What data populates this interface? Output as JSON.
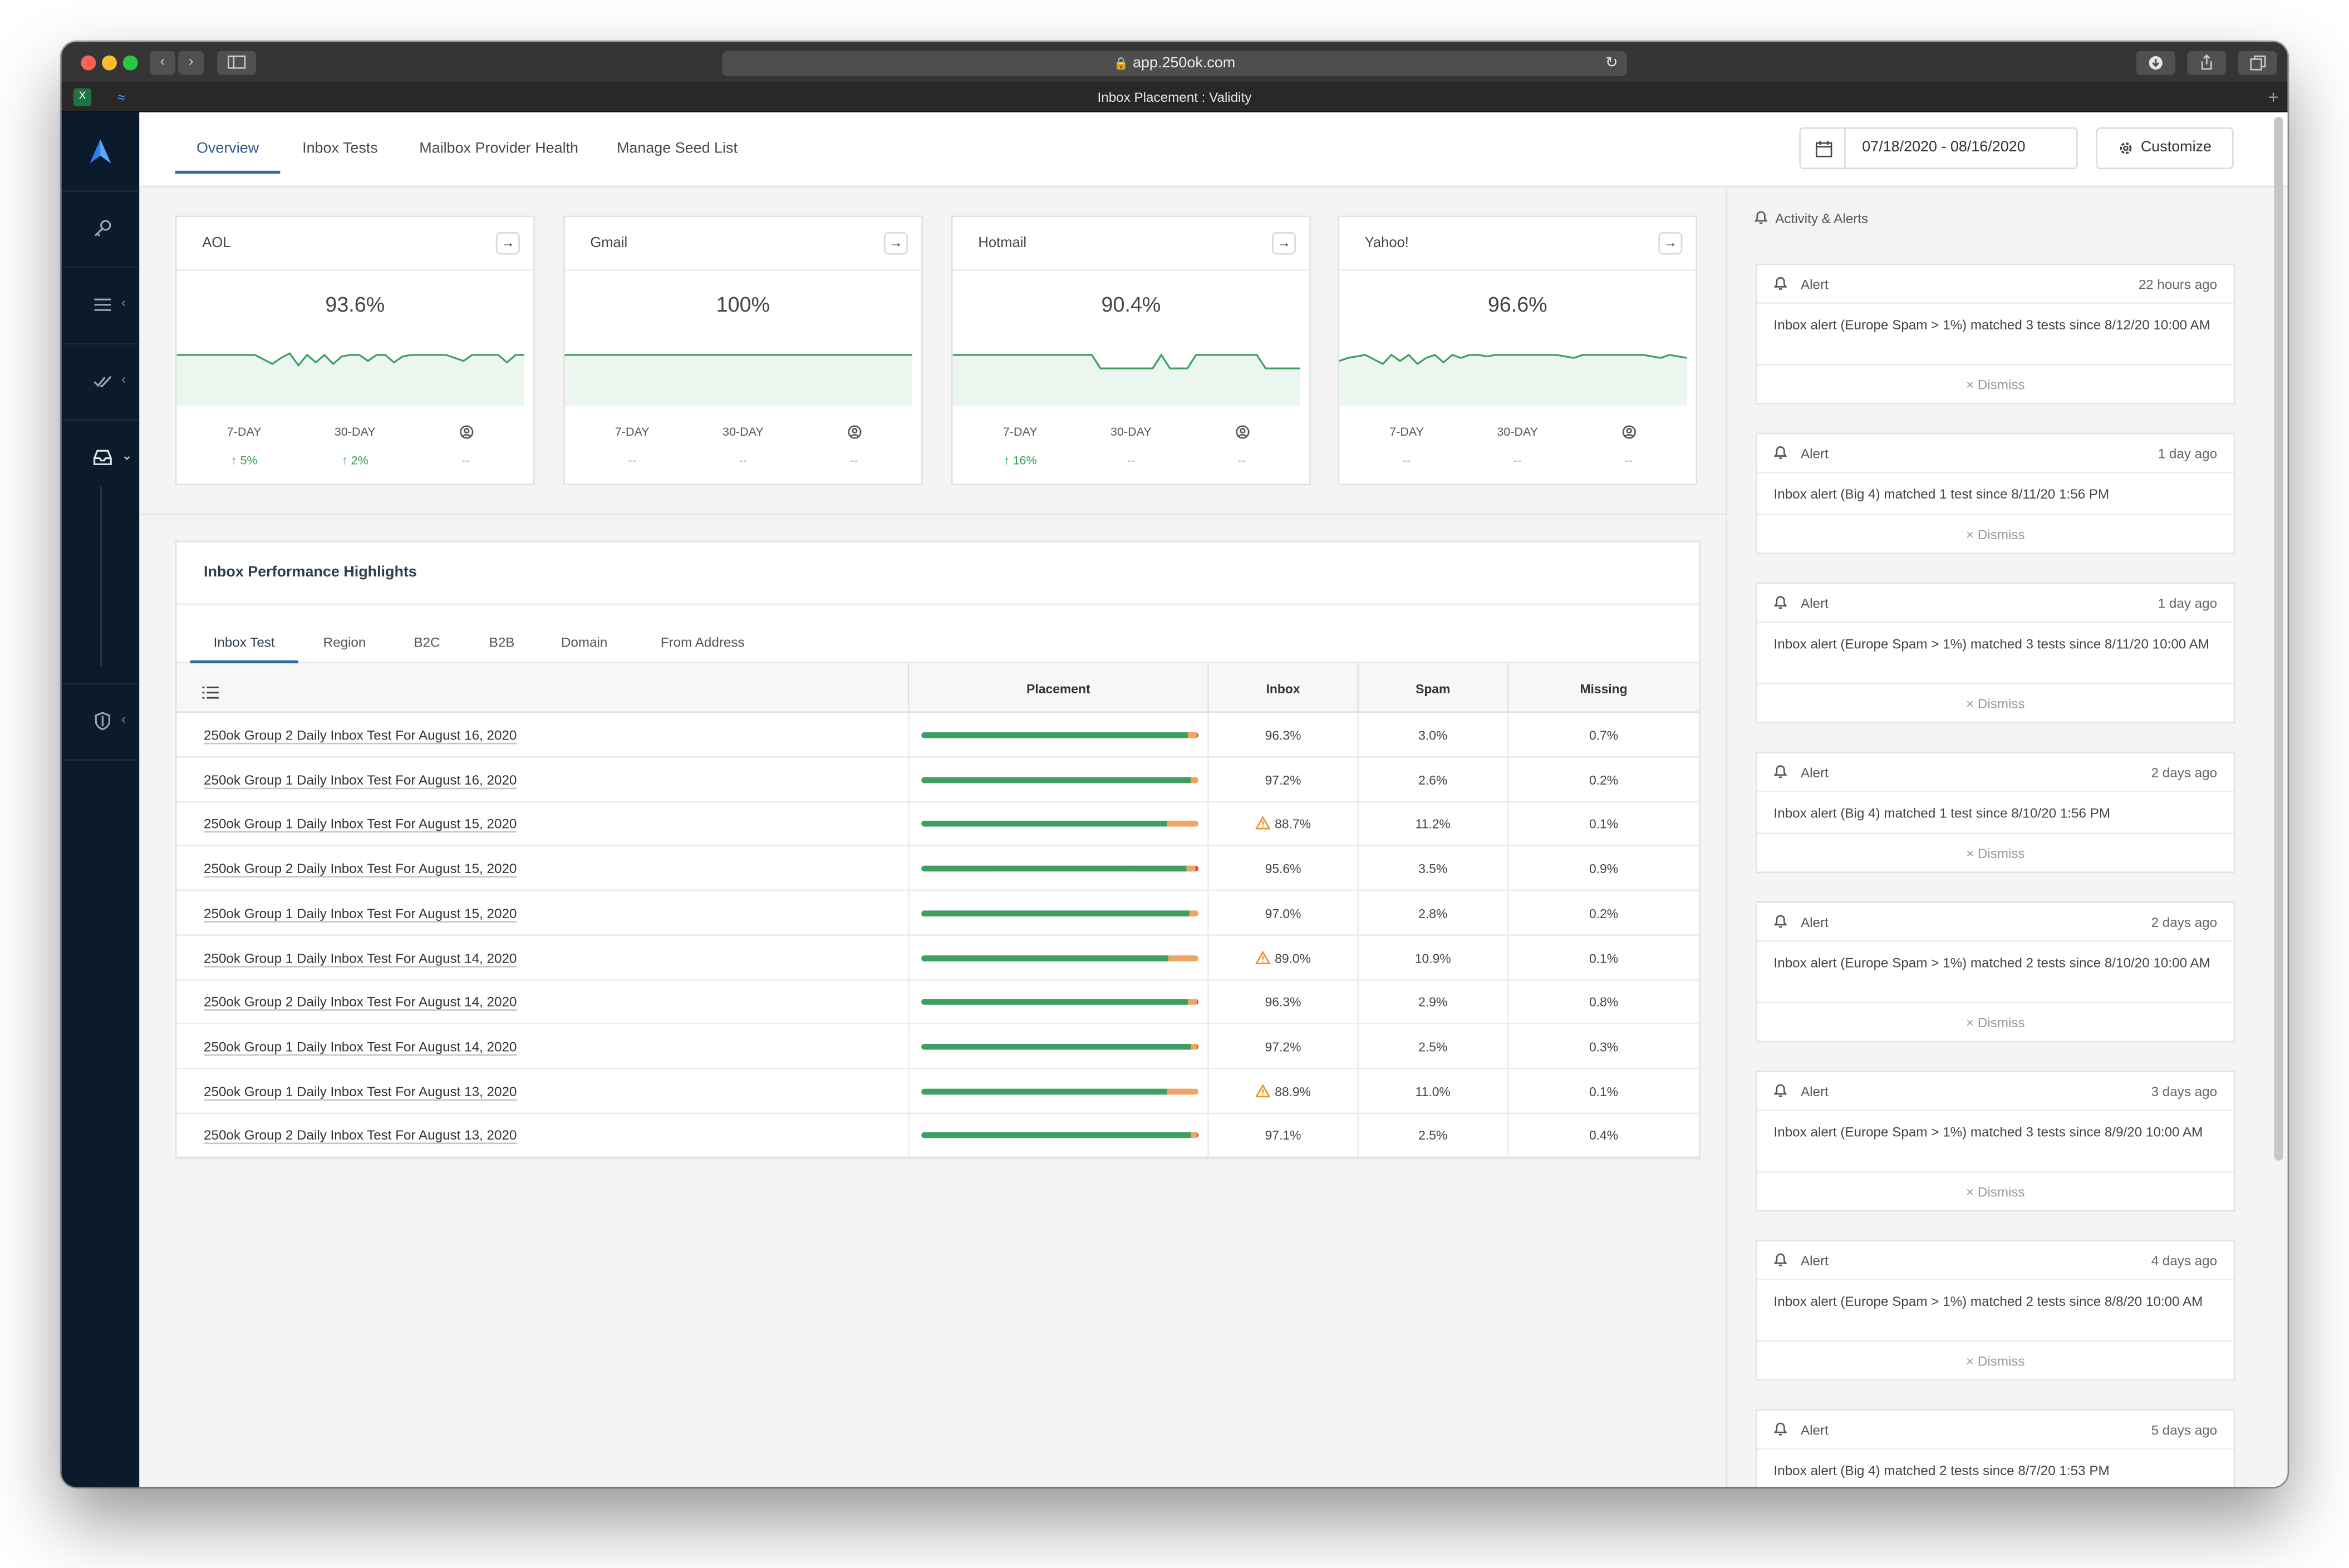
{
  "browser": {
    "url": "app.250ok.com",
    "tab_title": "Inbox Placement : Validity"
  },
  "header": {
    "tabs": [
      "Overview",
      "Inbox Tests",
      "Mailbox Provider Health",
      "Manage Seed List"
    ],
    "date_range": "07/18/2020 - 08/16/2020",
    "customize_label": "Customize"
  },
  "cards": [
    {
      "name": "AOL",
      "value": "93.6%",
      "stats": [
        {
          "label": "7-DAY",
          "value": "5%",
          "trend": "up"
        },
        {
          "label": "30-DAY",
          "value": "2%",
          "trend": "up"
        },
        {
          "label": "",
          "value": "--"
        }
      ]
    },
    {
      "name": "Gmail",
      "value": "100%",
      "stats": [
        {
          "label": "7-DAY",
          "value": "--"
        },
        {
          "label": "30-DAY",
          "value": "--"
        },
        {
          "label": "",
          "value": "--"
        }
      ]
    },
    {
      "name": "Hotmail",
      "value": "90.4%",
      "stats": [
        {
          "label": "7-DAY",
          "value": "16%",
          "trend": "up"
        },
        {
          "label": "30-DAY",
          "value": "--"
        },
        {
          "label": "",
          "value": "--"
        }
      ]
    },
    {
      "name": "Yahoo!",
      "value": "96.6%",
      "stats": [
        {
          "label": "7-DAY",
          "value": "--"
        },
        {
          "label": "30-DAY",
          "value": "--"
        },
        {
          "label": "",
          "value": "--"
        }
      ]
    }
  ],
  "highlights": {
    "title": "Inbox Performance Highlights",
    "tabs": [
      "Inbox Test",
      "Region",
      "B2C",
      "B2B",
      "Domain",
      "From Address"
    ],
    "columns": [
      "Placement",
      "Inbox",
      "Spam",
      "Missing"
    ],
    "rows": [
      {
        "name": "250ok Group 2 Daily Inbox Test For August 16, 2020",
        "inbox": "96.3%",
        "spam": "3.0%",
        "missing": "0.7%",
        "warn": false,
        "inbox_pct": 96.3,
        "spam_pct": 3.0,
        "missing_pct": 0.7
      },
      {
        "name": "250ok Group 1 Daily Inbox Test For August 16, 2020",
        "inbox": "97.2%",
        "spam": "2.6%",
        "missing": "0.2%",
        "warn": false,
        "inbox_pct": 97.2,
        "spam_pct": 2.6,
        "missing_pct": 0.2
      },
      {
        "name": "250ok Group 1 Daily Inbox Test For August 15, 2020",
        "inbox": "88.7%",
        "spam": "11.2%",
        "missing": "0.1%",
        "warn": true,
        "inbox_pct": 88.7,
        "spam_pct": 11.2,
        "missing_pct": 0.1
      },
      {
        "name": "250ok Group 2 Daily Inbox Test For August 15, 2020",
        "inbox": "95.6%",
        "spam": "3.5%",
        "missing": "0.9%",
        "warn": false,
        "inbox_pct": 95.6,
        "spam_pct": 3.5,
        "missing_pct": 0.9
      },
      {
        "name": "250ok Group 1 Daily Inbox Test For August 15, 2020",
        "inbox": "97.0%",
        "spam": "2.8%",
        "missing": "0.2%",
        "warn": false,
        "inbox_pct": 97.0,
        "spam_pct": 2.8,
        "missing_pct": 0.2
      },
      {
        "name": "250ok Group 1 Daily Inbox Test For August 14, 2020",
        "inbox": "89.0%",
        "spam": "10.9%",
        "missing": "0.1%",
        "warn": true,
        "inbox_pct": 89.0,
        "spam_pct": 10.9,
        "missing_pct": 0.1
      },
      {
        "name": "250ok Group 2 Daily Inbox Test For August 14, 2020",
        "inbox": "96.3%",
        "spam": "2.9%",
        "missing": "0.8%",
        "warn": false,
        "inbox_pct": 96.3,
        "spam_pct": 2.9,
        "missing_pct": 0.8
      },
      {
        "name": "250ok Group 1 Daily Inbox Test For August 14, 2020",
        "inbox": "97.2%",
        "spam": "2.5%",
        "missing": "0.3%",
        "warn": false,
        "inbox_pct": 97.2,
        "spam_pct": 2.5,
        "missing_pct": 0.3
      },
      {
        "name": "250ok Group 1 Daily Inbox Test For August 13, 2020",
        "inbox": "88.9%",
        "spam": "11.0%",
        "missing": "0.1%",
        "warn": true,
        "inbox_pct": 88.9,
        "spam_pct": 11.0,
        "missing_pct": 0.1
      },
      {
        "name": "250ok Group 2 Daily Inbox Test For August 13, 2020",
        "inbox": "97.1%",
        "spam": "2.5%",
        "missing": "0.4%",
        "warn": false,
        "inbox_pct": 97.1,
        "spam_pct": 2.5,
        "missing_pct": 0.4
      }
    ]
  },
  "sidebar": {
    "title": "Activity & Alerts",
    "alert_label": "Alert",
    "dismiss_label": "Dismiss",
    "alerts": [
      {
        "time": "22 hours ago",
        "message": "Inbox alert (Europe Spam > 1%) matched 3 tests since 8/12/20 10:00 AM"
      },
      {
        "time": "1 day ago",
        "message": "Inbox alert (Big 4) matched 1 test since 8/11/20 1:56 PM"
      },
      {
        "time": "1 day ago",
        "message": "Inbox alert (Europe Spam > 1%) matched 3 tests since 8/11/20 10:00 AM"
      },
      {
        "time": "2 days ago",
        "message": "Inbox alert (Big 4) matched 1 test since 8/10/20 1:56 PM"
      },
      {
        "time": "2 days ago",
        "message": "Inbox alert (Europe Spam > 1%) matched 2 tests since 8/10/20 10:00 AM"
      },
      {
        "time": "3 days ago",
        "message": "Inbox alert (Europe Spam > 1%) matched 3 tests since 8/9/20 10:00 AM"
      },
      {
        "time": "4 days ago",
        "message": "Inbox alert (Europe Spam > 1%) matched 2 tests since 8/8/20 10:00 AM"
      },
      {
        "time": "5 days ago",
        "message": "Inbox alert (Big 4) matched 2 tests since 8/7/20 1:53 PM"
      }
    ]
  },
  "colors": {
    "nav_bg": "#0c1b2b",
    "accent": "#2b6cb0",
    "inbox_bar": "#3f9f63",
    "spam_bar": "#f0a460",
    "missing_bar": "#d94b3d",
    "trend_up": "#2f9d5a"
  },
  "icons": [
    "key-icon",
    "menu-icon",
    "check-icon",
    "inbox-icon",
    "shield-icon",
    "calendar-icon",
    "gear-icon",
    "bell-icon",
    "list-icon",
    "warning-icon",
    "arrow-right-icon"
  ]
}
